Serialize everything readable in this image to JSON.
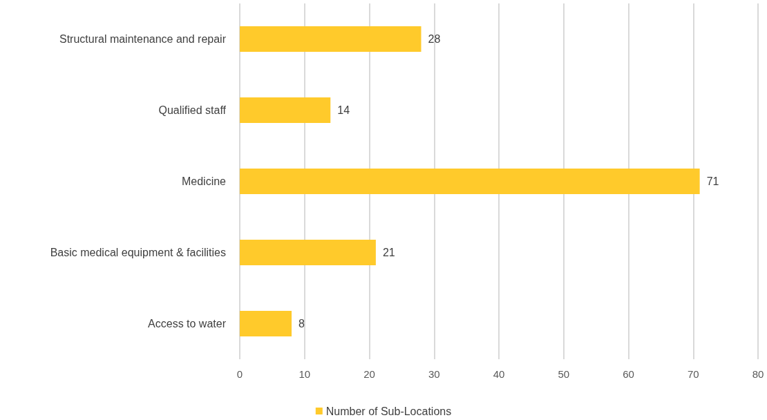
{
  "chart_data": {
    "type": "bar",
    "orientation": "horizontal",
    "categories": [
      "Structural maintenance and repair",
      "Qualified staff",
      "Medicine",
      "Basic medical equipment & facilities",
      "Access to water"
    ],
    "series": [
      {
        "name": "Number of Sub-Locations",
        "color": "#ffca2b",
        "values": [
          28,
          14,
          71,
          21,
          8
        ]
      }
    ],
    "xlim": [
      0,
      80
    ],
    "xticks": [
      0,
      10,
      20,
      30,
      40,
      50,
      60,
      70,
      80
    ],
    "grid": "x",
    "legend": "bottom",
    "data_labels": true
  }
}
